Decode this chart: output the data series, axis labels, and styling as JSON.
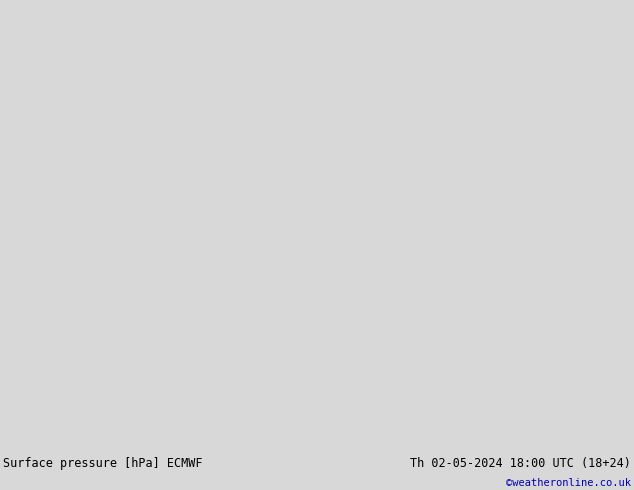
{
  "title_left": "Surface pressure [hPa] ECMWF",
  "title_right": "Th 02-05-2024 18:00 UTC (18+24)",
  "copyright": "©weatheronline.co.uk",
  "bg_color": "#d8d8d8",
  "land_color": "#b5e0a0",
  "sea_color": "#d8d8d8",
  "red_contour_color": "#cc0000",
  "blue_contour_color": "#0000bb",
  "black_contour_color": "#000000",
  "label_fontsize": 6.5,
  "title_fontsize": 8.5,
  "copyright_fontsize": 7.5,
  "figsize": [
    6.34,
    4.9
  ],
  "dpi": 100,
  "lon_min": -12,
  "lon_max": 40,
  "lat_min": 50,
  "lat_max": 75
}
